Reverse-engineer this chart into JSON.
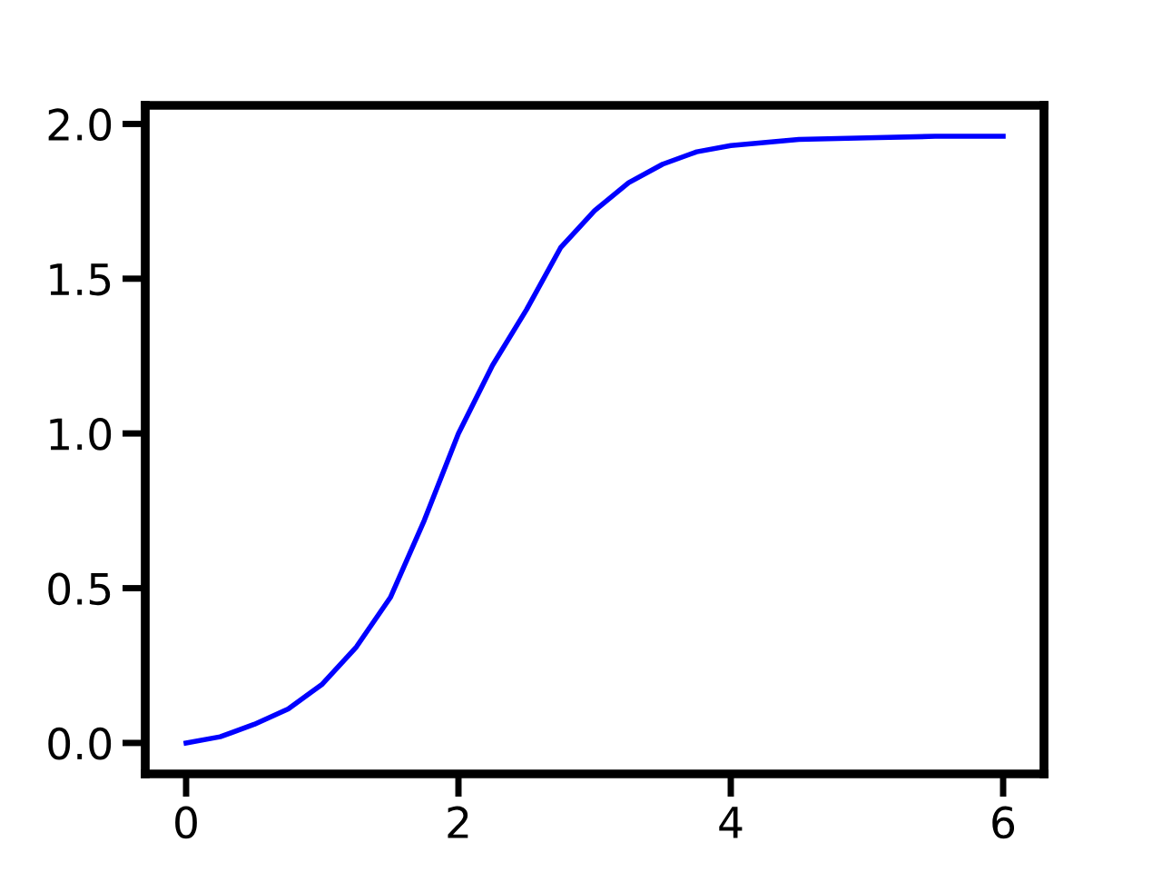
{
  "chart_data": {
    "type": "line",
    "series": [
      {
        "color": "#0000ff",
        "x": [
          0,
          0.25,
          0.5,
          0.75,
          1,
          1.25,
          1.5,
          1.75,
          2,
          2.25,
          2.5,
          2.75,
          3,
          3.25,
          3.5,
          3.75,
          4,
          4.5,
          5,
          5.5,
          6
        ],
        "values": [
          0,
          0.02,
          0.06,
          0.11,
          0.19,
          0.31,
          0.47,
          0.72,
          1.0,
          1.22,
          1.4,
          1.6,
          1.72,
          1.81,
          1.87,
          1.91,
          1.93,
          1.95,
          1.955,
          1.96,
          1.96
        ]
      }
    ],
    "xlim": [
      -0.3,
      6.3
    ],
    "ylim": [
      -0.1,
      2.06
    ],
    "xticks": [
      0,
      2,
      4,
      6
    ],
    "yticks": [
      {
        "value": 0,
        "label": "0.0"
      },
      {
        "value": 0.5,
        "label": "0.5"
      },
      {
        "value": 1,
        "label": "1.0"
      },
      {
        "value": 1.5,
        "label": "1.5"
      },
      {
        "value": 2,
        "label": "2.0"
      }
    ],
    "grid": false,
    "legend": false
  }
}
